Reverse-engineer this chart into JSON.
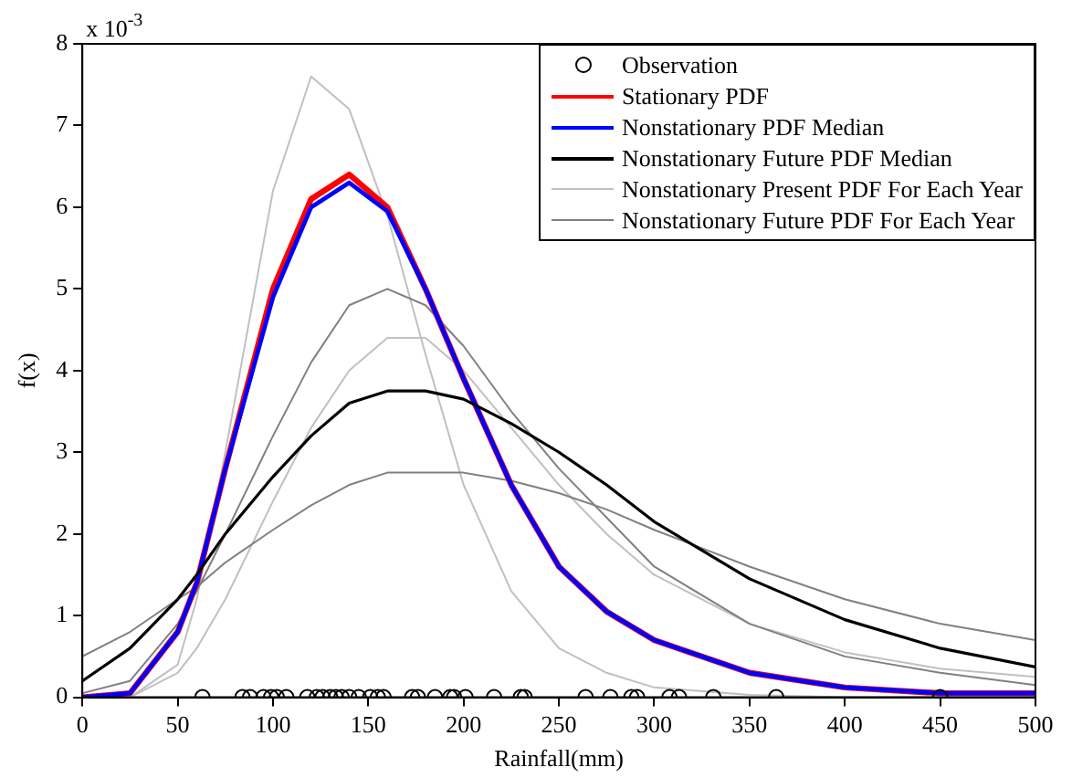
{
  "chart_data": {
    "type": "line",
    "xlabel": "Rainfall(mm)",
    "ylabel": "f(x)",
    "x": [
      0,
      25,
      50,
      60,
      75,
      100,
      120,
      140,
      160,
      180,
      200,
      225,
      250,
      275,
      300,
      350,
      400,
      450,
      500
    ],
    "xlim": [
      0,
      500
    ],
    "xticks": [
      0,
      50,
      100,
      150,
      200,
      250,
      300,
      350,
      400,
      450,
      500
    ],
    "ylim": [
      0,
      8
    ],
    "yticks": [
      0,
      1,
      2,
      3,
      4,
      5,
      6,
      7,
      8
    ],
    "annotations": [
      "x 10$^{-3}$"
    ],
    "legend": "top right",
    "grid": false,
    "series": [
      {
        "name": "Observation",
        "type": "scatter",
        "marker": "circle",
        "color": "#000000",
        "x": [
          63,
          84,
          88,
          95,
          99,
          102,
          107,
          118,
          123,
          126,
          130,
          133,
          136,
          140,
          145,
          151,
          155,
          158,
          173,
          176,
          185,
          193,
          195,
          201,
          216,
          230,
          232,
          264,
          277,
          288,
          291,
          308,
          313,
          331,
          364,
          450
        ],
        "values": [
          0,
          0,
          0,
          0,
          0,
          0,
          0,
          0,
          0,
          0,
          0,
          0,
          0,
          0,
          0,
          0,
          0,
          0,
          0,
          0,
          0,
          0,
          0,
          0,
          0,
          0,
          0,
          0,
          0,
          0,
          0,
          0,
          0,
          0,
          0,
          0
        ]
      },
      {
        "name": "Stationary PDF",
        "marker": "none",
        "color": "#ff0000",
        "values": [
          0,
          0.05,
          0.8,
          1.4,
          2.8,
          5.0,
          6.1,
          6.4,
          6.0,
          5.0,
          3.9,
          2.6,
          1.6,
          1.05,
          0.7,
          0.3,
          0.12,
          0.05,
          0.05
        ]
      },
      {
        "name": "Nonstationary PDF Median",
        "marker": "none",
        "color": "#0000ff",
        "values": [
          0,
          0.05,
          0.8,
          1.4,
          2.8,
          4.9,
          6.0,
          6.3,
          5.95,
          5.0,
          3.9,
          2.6,
          1.6,
          1.05,
          0.7,
          0.3,
          0.12,
          0.05,
          0.05
        ]
      },
      {
        "name": "Nonstationary Future PDF Median",
        "marker": "none",
        "color": "#000000",
        "values": [
          0.2,
          0.6,
          1.2,
          1.5,
          2.0,
          2.7,
          3.2,
          3.6,
          3.75,
          3.75,
          3.65,
          3.35,
          3.0,
          2.6,
          2.15,
          1.45,
          0.95,
          0.6,
          0.37
        ]
      },
      {
        "name": "Nonstationary Present PDF For Each Year",
        "marker": "none",
        "color": "#c0c0c0",
        "values": [
          0,
          0,
          0.4,
          1.2,
          3.0,
          6.2,
          7.6,
          7.2,
          5.9,
          4.2,
          2.6,
          1.3,
          0.6,
          0.3,
          0.12,
          0.03,
          0,
          0,
          0
        ]
      },
      {
        "marker": "none",
        "color": "#c0c0c0",
        "values": [
          0,
          0,
          0.3,
          0.6,
          1.2,
          2.4,
          3.3,
          4.0,
          4.4,
          4.4,
          4.0,
          3.3,
          2.6,
          2.0,
          1.5,
          0.9,
          0.55,
          0.35,
          0.25
        ]
      },
      {
        "name": "Nonstationary Future PDF For Each Year",
        "marker": "none",
        "color": "#808080",
        "values": [
          0.05,
          0.2,
          0.9,
          1.3,
          2.0,
          3.2,
          4.1,
          4.8,
          5.0,
          4.8,
          4.3,
          3.5,
          2.8,
          2.2,
          1.6,
          0.9,
          0.5,
          0.3,
          0.15
        ]
      },
      {
        "marker": "none",
        "color": "#808080",
        "values": [
          0.5,
          0.8,
          1.2,
          1.35,
          1.65,
          2.05,
          2.35,
          2.6,
          2.75,
          2.75,
          2.75,
          2.65,
          2.5,
          2.3,
          2.05,
          1.6,
          1.2,
          0.9,
          0.7
        ]
      }
    ]
  }
}
